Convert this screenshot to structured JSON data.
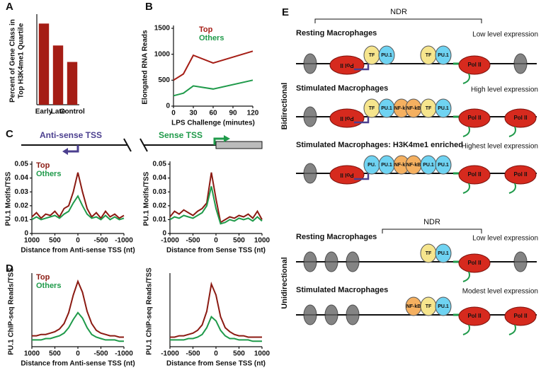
{
  "panel_labels": [
    "A",
    "B",
    "C",
    "D",
    "E"
  ],
  "chart_data": [
    {
      "type": "bar",
      "ylabel": [
        "Percent of Gene Class in",
        "Top H3K4me1 Quartile"
      ],
      "categories": [
        "Early",
        "Late",
        "Control"
      ],
      "values": [
        37,
        27,
        19.5
      ],
      "color": "#a51d15",
      "ylim": [
        0,
        40
      ]
    },
    {
      "type": "line",
      "ylabel": "Elongated RNA Reads",
      "xlabel": "LPS Challenge (minutes)",
      "x": [
        0,
        15,
        30,
        60,
        120
      ],
      "xlim": [
        0,
        120
      ],
      "xticks": [
        0,
        30,
        60,
        90,
        120
      ],
      "ylim": [
        0,
        1500
      ],
      "yticks": [
        0,
        500,
        1000,
        1500
      ],
      "legend": "upper center",
      "series": [
        {
          "name": "Top",
          "color": "#a51d15",
          "values": [
            500,
            620,
            980,
            830,
            1060
          ]
        },
        {
          "name": "Others",
          "color": "#1f9a4a",
          "values": [
            200,
            250,
            390,
            330,
            500
          ]
        }
      ]
    },
    {
      "type": "line",
      "ylabel": "PU.1 Motifs/TSS",
      "xlabel": "Distance from Anti-sense TSS (nt)",
      "x": [
        1000,
        900,
        800,
        700,
        600,
        500,
        400,
        300,
        200,
        100,
        0,
        -100,
        -200,
        -300,
        -400,
        -500,
        -600,
        -700,
        -800,
        -900,
        -1000
      ],
      "xlim": [
        1000,
        -1000
      ],
      "xticks": [
        1000,
        500,
        0,
        -500,
        -1000
      ],
      "ylim": [
        0,
        0.05
      ],
      "yticks": [
        0,
        0.01,
        0.02,
        0.03,
        0.04,
        0.05
      ],
      "legend": "upper left",
      "series": [
        {
          "name": "Top",
          "color": "#8b1a12",
          "values": [
            0.012,
            0.015,
            0.011,
            0.014,
            0.013,
            0.016,
            0.012,
            0.018,
            0.02,
            0.03,
            0.044,
            0.03,
            0.018,
            0.012,
            0.015,
            0.011,
            0.016,
            0.012,
            0.014,
            0.011,
            0.013
          ]
        },
        {
          "name": "Others",
          "color": "#1f9a4a",
          "values": [
            0.01,
            0.012,
            0.01,
            0.011,
            0.012,
            0.013,
            0.011,
            0.014,
            0.016,
            0.022,
            0.027,
            0.02,
            0.014,
            0.011,
            0.012,
            0.01,
            0.013,
            0.01,
            0.012,
            0.01,
            0.011
          ]
        }
      ]
    },
    {
      "type": "line",
      "ylabel": "PU.1 Motifs/TSS",
      "xlabel": "Distance from Sense TSS (nt)",
      "x": [
        -1000,
        -900,
        -800,
        -700,
        -600,
        -500,
        -400,
        -300,
        -200,
        -100,
        0,
        100,
        200,
        300,
        400,
        500,
        600,
        700,
        800,
        900,
        1000
      ],
      "xlim": [
        -1000,
        1000
      ],
      "xticks": [
        -1000,
        -500,
        0,
        500,
        1000
      ],
      "ylim": [
        0,
        0.05
      ],
      "yticks": [
        0,
        0.01,
        0.02,
        0.03,
        0.04,
        0.05
      ],
      "series": [
        {
          "name": "Top",
          "color": "#8b1a12",
          "values": [
            0.012,
            0.016,
            0.014,
            0.017,
            0.015,
            0.013,
            0.016,
            0.018,
            0.022,
            0.044,
            0.025,
            0.008,
            0.01,
            0.012,
            0.011,
            0.013,
            0.012,
            0.014,
            0.011,
            0.016,
            0.01
          ]
        },
        {
          "name": "Others",
          "color": "#1f9a4a",
          "values": [
            0.01,
            0.012,
            0.011,
            0.013,
            0.012,
            0.011,
            0.013,
            0.015,
            0.02,
            0.034,
            0.018,
            0.007,
            0.008,
            0.01,
            0.009,
            0.011,
            0.01,
            0.011,
            0.009,
            0.012,
            0.009
          ]
        }
      ]
    },
    {
      "type": "line",
      "ylabel": "PU.1 ChIP-seq Reads/TSS",
      "xlabel": "Distance from Anti-sense TSS (nt)",
      "x": [
        1000,
        900,
        800,
        700,
        600,
        500,
        400,
        300,
        200,
        100,
        0,
        -100,
        -200,
        -300,
        -400,
        -500,
        -600,
        -700,
        -800,
        -900,
        -1000
      ],
      "xlim": [
        1000,
        -1000
      ],
      "xticks": [
        1000,
        500,
        0,
        -500,
        -1000
      ],
      "ylim": [
        0,
        52
      ],
      "legend": "upper left",
      "series": [
        {
          "name": "Top",
          "color": "#8b1a12",
          "values": [
            8,
            8,
            9,
            9,
            10,
            11,
            13,
            17,
            25,
            38,
            48,
            40,
            26,
            17,
            12,
            10,
            9,
            8,
            8,
            7,
            7
          ]
        },
        {
          "name": "Others",
          "color": "#1f9a4a",
          "values": [
            5,
            5,
            5,
            6,
            6,
            7,
            8,
            10,
            14,
            20,
            25,
            21,
            14,
            9,
            7,
            6,
            5,
            5,
            5,
            4,
            4
          ]
        }
      ]
    },
    {
      "type": "line",
      "ylabel": "PU.1 ChIP-seq Reads/TSS",
      "xlabel": "Distance from Sense TSS (nt)",
      "x": [
        -1000,
        -900,
        -800,
        -700,
        -600,
        -500,
        -400,
        -300,
        -200,
        -100,
        0,
        100,
        200,
        300,
        400,
        500,
        600,
        700,
        800,
        900,
        1000
      ],
      "xlim": [
        -1000,
        1000
      ],
      "xticks": [
        -1000,
        -500,
        0,
        500,
        1000
      ],
      "ylim": [
        0,
        52
      ],
      "series": [
        {
          "name": "Top",
          "color": "#8b1a12",
          "values": [
            7,
            7,
            8,
            8,
            9,
            10,
            12,
            16,
            26,
            46,
            38,
            22,
            14,
            11,
            9,
            8,
            8,
            7,
            7,
            7,
            7
          ]
        },
        {
          "name": "Others",
          "color": "#1f9a4a",
          "values": [
            5,
            5,
            5,
            5,
            6,
            6,
            7,
            9,
            14,
            22,
            19,
            12,
            8,
            6,
            6,
            5,
            5,
            5,
            4,
            4,
            4
          ]
        }
      ]
    }
  ],
  "c_header": {
    "antisense": "Anti-sense TSS",
    "sense": "Sense TSS"
  },
  "diagram": {
    "ndr": [
      "NDR",
      "NDR"
    ],
    "groups": [
      "Bidirectional",
      "Unidirectional"
    ],
    "rows": [
      {
        "title": "Resting Macrophages",
        "expression": "Low level expression",
        "left_factors": [
          {
            "label": "TF",
            "color": "#f6e58d"
          },
          {
            "label": "PU.1",
            "color": "#6fd3f2"
          }
        ],
        "right_factors": [
          {
            "label": "TF",
            "color": "#f6e58d"
          },
          {
            "label": "PU.1",
            "color": "#6fd3f2"
          }
        ],
        "antisense_pol": [
          "Pol II"
        ],
        "sense_pol": [
          "Pol II"
        ]
      },
      {
        "title": "Stimulated Macrophages",
        "expression": "High level expression",
        "left_factors": [
          {
            "label": "TF",
            "color": "#f6e58d"
          },
          {
            "label": "PU.1",
            "color": "#6fd3f2"
          },
          {
            "label": "NF-kB",
            "color": "#f5b060"
          }
        ],
        "right_factors": [
          {
            "label": "NF-kB",
            "color": "#f5b060"
          },
          {
            "label": "TF",
            "color": "#f6e58d"
          },
          {
            "label": "PU.1",
            "color": "#6fd3f2"
          }
        ],
        "antisense_pol": [
          "Pol II"
        ],
        "sense_pol": [
          "Pol II",
          "Pol II"
        ]
      },
      {
        "title": "Stimulated Macrophages: H3K4me1 enriched",
        "expression": "Highest level expression",
        "left_factors": [
          {
            "label": "PU.",
            "color": "#6fd3f2"
          },
          {
            "label": "PU.1",
            "color": "#6fd3f2"
          },
          {
            "label": "NF-kB",
            "color": "#f5b060"
          }
        ],
        "right_factors": [
          {
            "label": "NF-kB",
            "color": "#f5b060"
          },
          {
            "label": "PU.1",
            "color": "#6fd3f2"
          },
          {
            "label": "PU.1",
            "color": "#6fd3f2"
          }
        ],
        "antisense_pol": [
          "Pol II"
        ],
        "sense_pol": [
          "Pol II",
          "Pol II"
        ]
      },
      {
        "title": "Resting Macrophages",
        "expression": "Low level expression",
        "left_factors": [],
        "right_factors": [
          {
            "label": "TF",
            "color": "#f6e58d"
          },
          {
            "label": "PU.1",
            "color": "#6fd3f2"
          }
        ],
        "antisense_pol": [],
        "sense_pol": [
          "Pol II"
        ]
      },
      {
        "title": "Stimulated Macrophages",
        "expression": "Modest level expression",
        "left_factors": [],
        "right_factors": [
          {
            "label": "NF-kB",
            "color": "#f5b060"
          },
          {
            "label": "TF",
            "color": "#f6e58d"
          },
          {
            "label": "PU.1",
            "color": "#6fd3f2"
          }
        ],
        "antisense_pol": [],
        "sense_pol": [
          "Pol II",
          "Pol II"
        ]
      }
    ]
  }
}
